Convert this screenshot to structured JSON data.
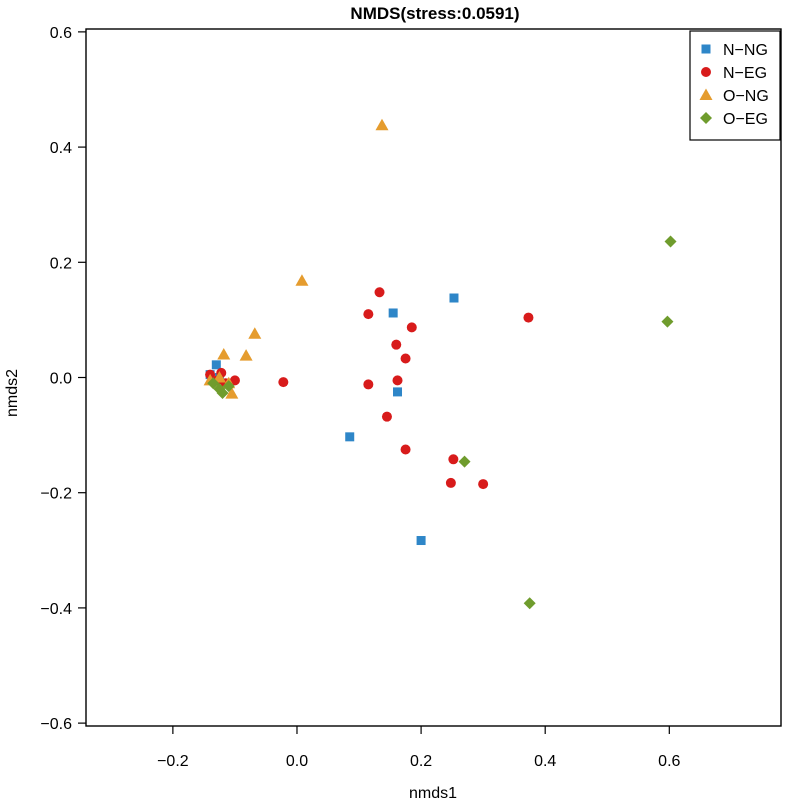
{
  "chart_data": {
    "type": "scatter",
    "title": "NMDS(stress:0.0591)",
    "xlabel": "nmds1",
    "ylabel": "nmds2",
    "xlim": [
      -0.34,
      0.78
    ],
    "ylim": [
      -0.605,
      0.605
    ],
    "xticks": [
      -0.2,
      0.0,
      0.2,
      0.4,
      0.6
    ],
    "yticks": [
      -0.6,
      -0.4,
      -0.2,
      0.0,
      0.2,
      0.4,
      0.6
    ],
    "xtick_labels": [
      "−0.2",
      "0.0",
      "0.2",
      "0.4",
      "0.6"
    ],
    "ytick_labels": [
      "−0.6",
      "−0.4",
      "−0.2",
      "0.0",
      "0.2",
      "0.4",
      "0.6"
    ],
    "grid": false,
    "legend_position": "top-right",
    "series": [
      {
        "name": "N−NG",
        "marker": "square",
        "color": "#2e86c8",
        "points": [
          {
            "x": -0.14,
            "y": 0.005
          },
          {
            "x": -0.13,
            "y": 0.022
          },
          {
            "x": -0.125,
            "y": 0.0
          },
          {
            "x": -0.115,
            "y": -0.01
          },
          {
            "x": 0.085,
            "y": -0.103
          },
          {
            "x": 0.155,
            "y": 0.112
          },
          {
            "x": 0.162,
            "y": -0.025
          },
          {
            "x": 0.253,
            "y": 0.138
          },
          {
            "x": 0.2,
            "y": -0.283
          }
        ]
      },
      {
        "name": "N−EG",
        "marker": "circle",
        "color": "#d81b1b",
        "points": [
          {
            "x": -0.14,
            "y": 0.005
          },
          {
            "x": -0.128,
            "y": -0.005
          },
          {
            "x": -0.122,
            "y": 0.008
          },
          {
            "x": -0.115,
            "y": -0.01
          },
          {
            "x": -0.1,
            "y": -0.005
          },
          {
            "x": -0.022,
            "y": -0.008
          },
          {
            "x": 0.115,
            "y": 0.11
          },
          {
            "x": 0.133,
            "y": 0.148
          },
          {
            "x": 0.115,
            "y": -0.012
          },
          {
            "x": 0.145,
            "y": -0.068
          },
          {
            "x": 0.16,
            "y": 0.057
          },
          {
            "x": 0.162,
            "y": -0.005
          },
          {
            "x": 0.175,
            "y": 0.033
          },
          {
            "x": 0.185,
            "y": 0.087
          },
          {
            "x": 0.175,
            "y": -0.125
          },
          {
            "x": 0.252,
            "y": -0.142
          },
          {
            "x": 0.248,
            "y": -0.183
          },
          {
            "x": 0.3,
            "y": -0.185
          },
          {
            "x": 0.373,
            "y": 0.104
          }
        ]
      },
      {
        "name": "O−NG",
        "marker": "triangle",
        "color": "#e59c2e",
        "points": [
          {
            "x": -0.14,
            "y": -0.005
          },
          {
            "x": -0.125,
            "y": 0.0
          },
          {
            "x": -0.118,
            "y": 0.04
          },
          {
            "x": -0.11,
            "y": -0.01
          },
          {
            "x": -0.105,
            "y": -0.028
          },
          {
            "x": -0.082,
            "y": 0.038
          },
          {
            "x": -0.068,
            "y": 0.076
          },
          {
            "x": 0.008,
            "y": 0.168
          },
          {
            "x": 0.137,
            "y": 0.438
          }
        ]
      },
      {
        "name": "O−EG",
        "marker": "diamond",
        "color": "#6f9c2d",
        "points": [
          {
            "x": -0.135,
            "y": -0.01
          },
          {
            "x": -0.125,
            "y": -0.02
          },
          {
            "x": -0.12,
            "y": -0.027
          },
          {
            "x": -0.11,
            "y": -0.015
          },
          {
            "x": 0.27,
            "y": -0.146
          },
          {
            "x": 0.375,
            "y": -0.392
          },
          {
            "x": 0.597,
            "y": 0.097
          },
          {
            "x": 0.602,
            "y": 0.236
          }
        ]
      }
    ]
  }
}
